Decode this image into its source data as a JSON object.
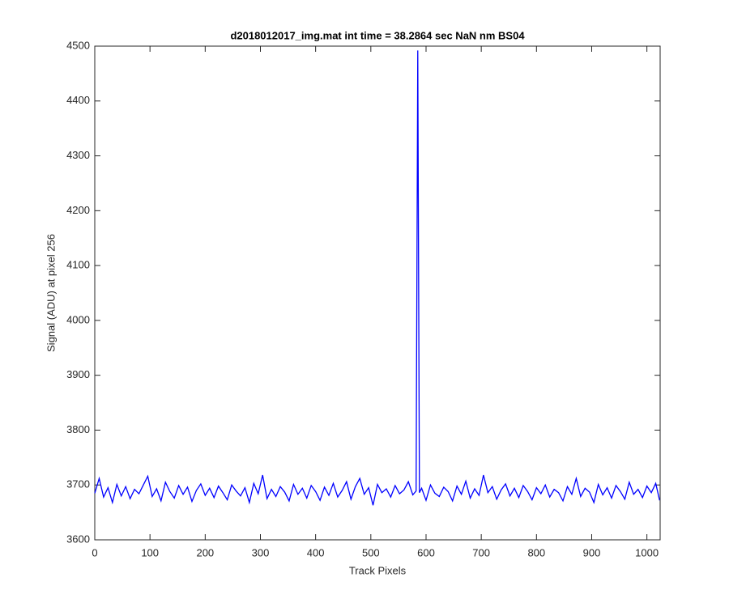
{
  "chart_data": {
    "type": "line",
    "title": "d2018012017_img.mat int time = 38.2864 sec  NaN nm BS04",
    "x_label": "Track Pixels",
    "y_label": "Signal (ADU) at pixel 256",
    "xlim": [
      0,
      1024
    ],
    "ylim": [
      3600,
      4500
    ],
    "xticks": [
      0,
      100,
      200,
      300,
      400,
      500,
      600,
      700,
      800,
      900,
      1000
    ],
    "yticks": [
      3600,
      3700,
      3800,
      3900,
      4000,
      4100,
      4200,
      4300,
      4400,
      4500
    ],
    "grid": false,
    "x": [
      0,
      8,
      16,
      24,
      32,
      40,
      48,
      56,
      64,
      72,
      80,
      88,
      96,
      104,
      112,
      120,
      128,
      136,
      144,
      152,
      160,
      168,
      176,
      184,
      192,
      200,
      208,
      216,
      224,
      232,
      240,
      248,
      256,
      264,
      272,
      280,
      288,
      296,
      304,
      312,
      320,
      328,
      336,
      344,
      352,
      360,
      368,
      376,
      384,
      392,
      400,
      408,
      416,
      424,
      432,
      440,
      448,
      456,
      464,
      472,
      480,
      488,
      496,
      504,
      512,
      520,
      528,
      536,
      544,
      552,
      560,
      568,
      576,
      582,
      585,
      588,
      592,
      600,
      608,
      616,
      624,
      632,
      640,
      648,
      656,
      664,
      672,
      680,
      688,
      696,
      704,
      712,
      720,
      728,
      736,
      744,
      752,
      760,
      768,
      776,
      784,
      792,
      800,
      808,
      816,
      824,
      832,
      840,
      848,
      856,
      864,
      872,
      880,
      888,
      896,
      904,
      912,
      920,
      928,
      936,
      944,
      952,
      960,
      968,
      976,
      984,
      992,
      1000,
      1008,
      1016,
      1023
    ],
    "series": [
      {
        "color": "#0000ff",
        "values": [
          3685,
          3712,
          3678,
          3695,
          3668,
          3701,
          3680,
          3697,
          3675,
          3692,
          3684,
          3700,
          3716,
          3679,
          3693,
          3671,
          3705,
          3688,
          3676,
          3699,
          3683,
          3696,
          3670,
          3690,
          3702,
          3681,
          3694,
          3677,
          3698,
          3686,
          3673,
          3700,
          3689,
          3680,
          3695,
          3668,
          3703,
          3684,
          3718,
          3675,
          3692,
          3679,
          3697,
          3687,
          3671,
          3701,
          3683,
          3694,
          3676,
          3699,
          3688,
          3672,
          3696,
          3681,
          3703,
          3678,
          3690,
          3706,
          3674,
          3697,
          3712,
          3683,
          3695,
          3663,
          3701,
          3686,
          3693,
          3678,
          3699,
          3684,
          3691,
          3706,
          3682,
          3689,
          4492,
          3686,
          3694,
          3672,
          3700,
          3685,
          3679,
          3696,
          3688,
          3671,
          3698,
          3683,
          3707,
          3676,
          3693,
          3681,
          3718,
          3686,
          3697,
          3674,
          3691,
          3702,
          3680,
          3694,
          3677,
          3699,
          3688,
          3673,
          3695,
          3684,
          3700,
          3678,
          3692,
          3686,
          3671,
          3697,
          3683,
          3712,
          3679,
          3694,
          3687,
          3668,
          3701,
          3682,
          3695,
          3676,
          3699,
          3688,
          3674,
          3705,
          3683,
          3692,
          3677,
          3698,
          3686,
          3703,
          3672
        ]
      }
    ]
  }
}
